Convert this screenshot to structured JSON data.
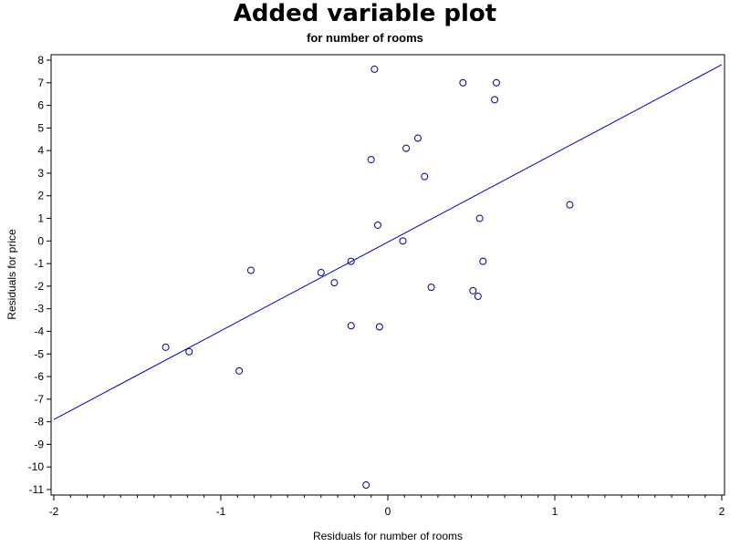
{
  "chart_data": {
    "type": "scatter",
    "title": "Added variable plot",
    "subtitle": "for number of rooms",
    "xlabel": "Residuals for number of rooms",
    "ylabel": "Residuals for price",
    "xlim": [
      -2,
      2
    ],
    "ylim": [
      -11,
      8
    ],
    "x_ticks": [
      -2,
      -1,
      0,
      1,
      2
    ],
    "y_ticks": [
      8,
      7,
      6,
      5,
      4,
      3,
      2,
      1,
      0,
      -1,
      -2,
      -3,
      -4,
      -5,
      -6,
      -7,
      -8,
      -9,
      -10,
      -11
    ],
    "grid": false,
    "legend": "none",
    "marker_color": "#00008b",
    "line_color": "#0000cc",
    "fit_line": {
      "x": [
        -2,
        2
      ],
      "y": [
        -7.9,
        7.8
      ]
    },
    "points": [
      {
        "x": -0.08,
        "y": 7.6
      },
      {
        "x": 0.45,
        "y": 7.0
      },
      {
        "x": 0.65,
        "y": 7.0
      },
      {
        "x": 0.64,
        "y": 6.25
      },
      {
        "x": 0.18,
        "y": 4.55
      },
      {
        "x": 0.11,
        "y": 4.1
      },
      {
        "x": -0.1,
        "y": 3.6
      },
      {
        "x": 0.22,
        "y": 2.85
      },
      {
        "x": 0.55,
        "y": 1.0
      },
      {
        "x": 1.09,
        "y": 1.6
      },
      {
        "x": -0.06,
        "y": 0.7
      },
      {
        "x": 0.09,
        "y": 0.0
      },
      {
        "x": 0.57,
        "y": -0.9
      },
      {
        "x": -0.22,
        "y": -0.9
      },
      {
        "x": -0.82,
        "y": -1.3
      },
      {
        "x": -0.4,
        "y": -1.4
      },
      {
        "x": -0.32,
        "y": -1.85
      },
      {
        "x": 0.26,
        "y": -2.05
      },
      {
        "x": 0.51,
        "y": -2.2
      },
      {
        "x": 0.54,
        "y": -2.45
      },
      {
        "x": -0.22,
        "y": -3.75
      },
      {
        "x": -0.05,
        "y": -3.8
      },
      {
        "x": -1.33,
        "y": -4.7
      },
      {
        "x": -1.19,
        "y": -4.9
      },
      {
        "x": -0.89,
        "y": -5.75
      },
      {
        "x": -0.13,
        "y": -10.8
      }
    ]
  }
}
